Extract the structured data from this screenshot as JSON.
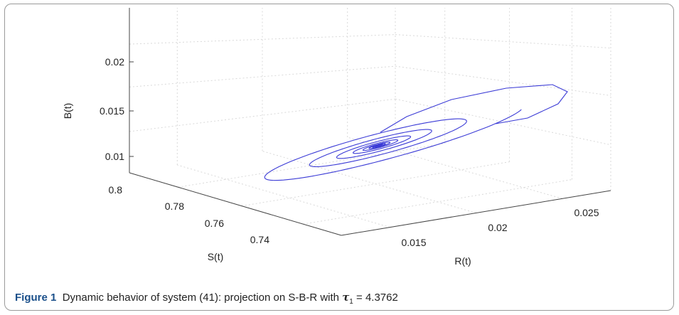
{
  "chart_data": {
    "type": "line3d",
    "axes": {
      "x": {
        "label": "R(t)",
        "ticks": [
          "0.015",
          "0.02",
          "0.025"
        ]
      },
      "y": {
        "label": "S(t)",
        "ticks": [
          "0.74",
          "0.76",
          "0.78",
          "0.8"
        ]
      },
      "z": {
        "label": "B(t)",
        "ticks": [
          "0.01",
          "0.015",
          "0.02"
        ]
      }
    },
    "grid": true,
    "series": [
      {
        "color": "#3b3bd6",
        "description_points": {
          "start": {
            "R": 0.0265,
            "S": 0.79,
            "B": 0.0125
          },
          "equilibrium": {
            "R": 0.0205,
            "S": 0.765,
            "B": 0.0108
          }
        }
      }
    ]
  },
  "caption": {
    "label": "Figure 1",
    "text": "Dynamic behavior of system (41): projection on S-B-R with",
    "tau_symbol": "τ",
    "tau_sub": "1",
    "tau_value": "= 4.3762"
  }
}
